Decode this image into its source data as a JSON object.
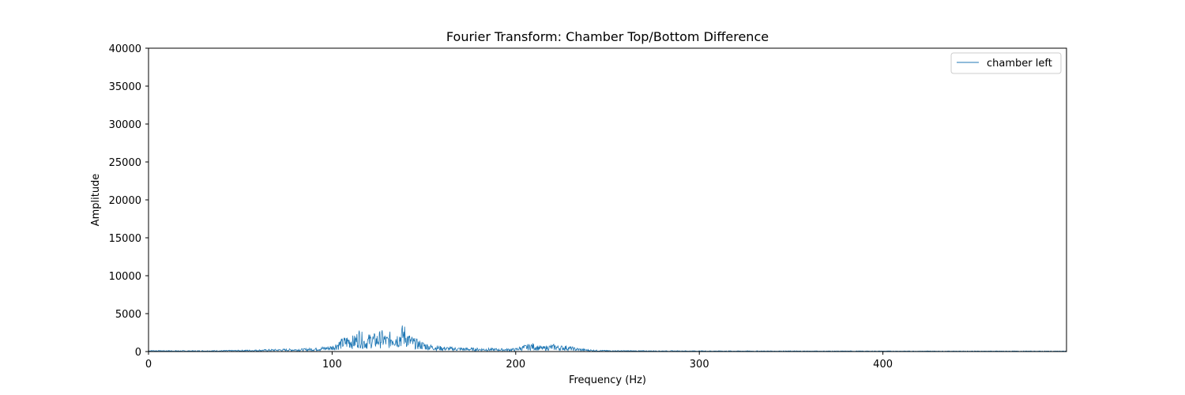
{
  "chart_data": {
    "type": "line",
    "title": "Fourier Transform: Chamber Top/Bottom Difference",
    "xlabel": "Frequency (Hz)",
    "ylabel": "Amplitude",
    "xlim": [
      0,
      500
    ],
    "ylim": [
      0,
      40000
    ],
    "xticks": [
      0,
      100,
      200,
      300,
      400
    ],
    "yticks": [
      0,
      5000,
      10000,
      15000,
      20000,
      25000,
      30000,
      35000,
      40000
    ],
    "grid": false,
    "legend_position": "top-right",
    "series": [
      {
        "name": "chamber left",
        "color": "#1f77b4",
        "x": [
          0,
          10,
          20,
          30,
          40,
          50,
          60,
          70,
          80,
          85,
          90,
          95,
          100,
          103,
          106,
          109,
          112,
          115,
          118,
          121,
          124,
          127,
          130,
          133,
          136,
          138,
          139,
          140,
          142,
          145,
          148,
          151,
          155,
          160,
          165,
          170,
          175,
          180,
          185,
          190,
          195,
          200,
          203,
          206,
          209,
          212,
          215,
          218,
          221,
          224,
          227,
          230,
          233,
          236,
          240,
          245,
          250,
          260,
          280,
          300,
          320,
          340,
          360,
          380,
          400,
          420,
          440,
          460,
          480,
          500
        ],
        "y": [
          180,
          150,
          130,
          140,
          160,
          200,
          260,
          330,
          380,
          420,
          500,
          650,
          850,
          1400,
          1900,
          2300,
          2100,
          3200,
          1800,
          2600,
          2400,
          2900,
          2200,
          3100,
          2700,
          3500,
          3800,
          3300,
          2400,
          1800,
          1500,
          1200,
          900,
          700,
          600,
          550,
          500,
          480,
          450,
          420,
          400,
          450,
          750,
          950,
          1150,
          850,
          700,
          900,
          1000,
          800,
          850,
          700,
          500,
          400,
          280,
          200,
          160,
          140,
          120,
          110,
          100,
          95,
          90,
          90,
          85,
          85,
          80,
          80,
          80,
          80
        ]
      }
    ]
  }
}
